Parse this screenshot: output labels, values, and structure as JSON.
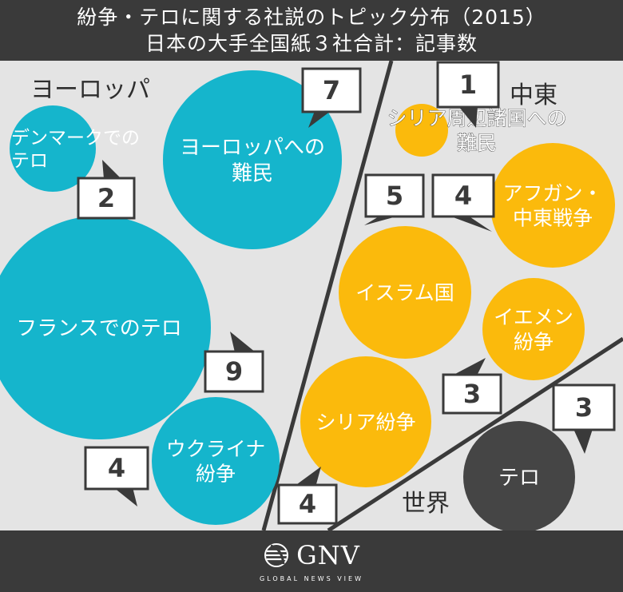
{
  "title": {
    "line1": "紛争・テロに関する社説のトピック分布（2015）",
    "line2": "日本の大手全国紙３社合計：記事数"
  },
  "logo": {
    "name": "GNV",
    "tagline": "GLOBAL NEWS VIEW"
  },
  "colors": {
    "europe": "#15b5cc",
    "middle_east": "#fbba0c",
    "world": "#454545",
    "background": "#e4e4e4",
    "bar": "#3a3a3a"
  },
  "chart_data": {
    "type": "bubble",
    "groups": [
      {
        "name": "ヨーロッパ",
        "color": "#15b5cc"
      },
      {
        "name": "中東",
        "color": "#fbba0c"
      },
      {
        "name": "世界",
        "color": "#454545"
      }
    ],
    "bubbles": [
      {
        "group": "ヨーロッパ",
        "label": [
          "デンマークでの",
          "テロ"
        ],
        "value": 2
      },
      {
        "group": "ヨーロッパ",
        "label": [
          "ヨーロッパへの",
          "難民"
        ],
        "value": 7
      },
      {
        "group": "ヨーロッパ",
        "label": [
          "フランスでのテロ"
        ],
        "value": 9
      },
      {
        "group": "ヨーロッパ",
        "label": [
          "ウクライナ",
          "紛争"
        ],
        "value": 4
      },
      {
        "group": "中東",
        "label": [
          "シリア周辺諸国への",
          "難民"
        ],
        "value": 1
      },
      {
        "group": "中東",
        "label": [
          "アフガン・",
          "中東戦争"
        ],
        "value": 4
      },
      {
        "group": "中東",
        "label": [
          "イスラム国"
        ],
        "value": 5
      },
      {
        "group": "中東",
        "label": [
          "イエメン",
          "紛争"
        ],
        "value": 3
      },
      {
        "group": "中東",
        "label": [
          "シリア紛争"
        ],
        "value": 4
      },
      {
        "group": "世界",
        "label": [
          "テロ"
        ],
        "value": 3
      }
    ]
  }
}
